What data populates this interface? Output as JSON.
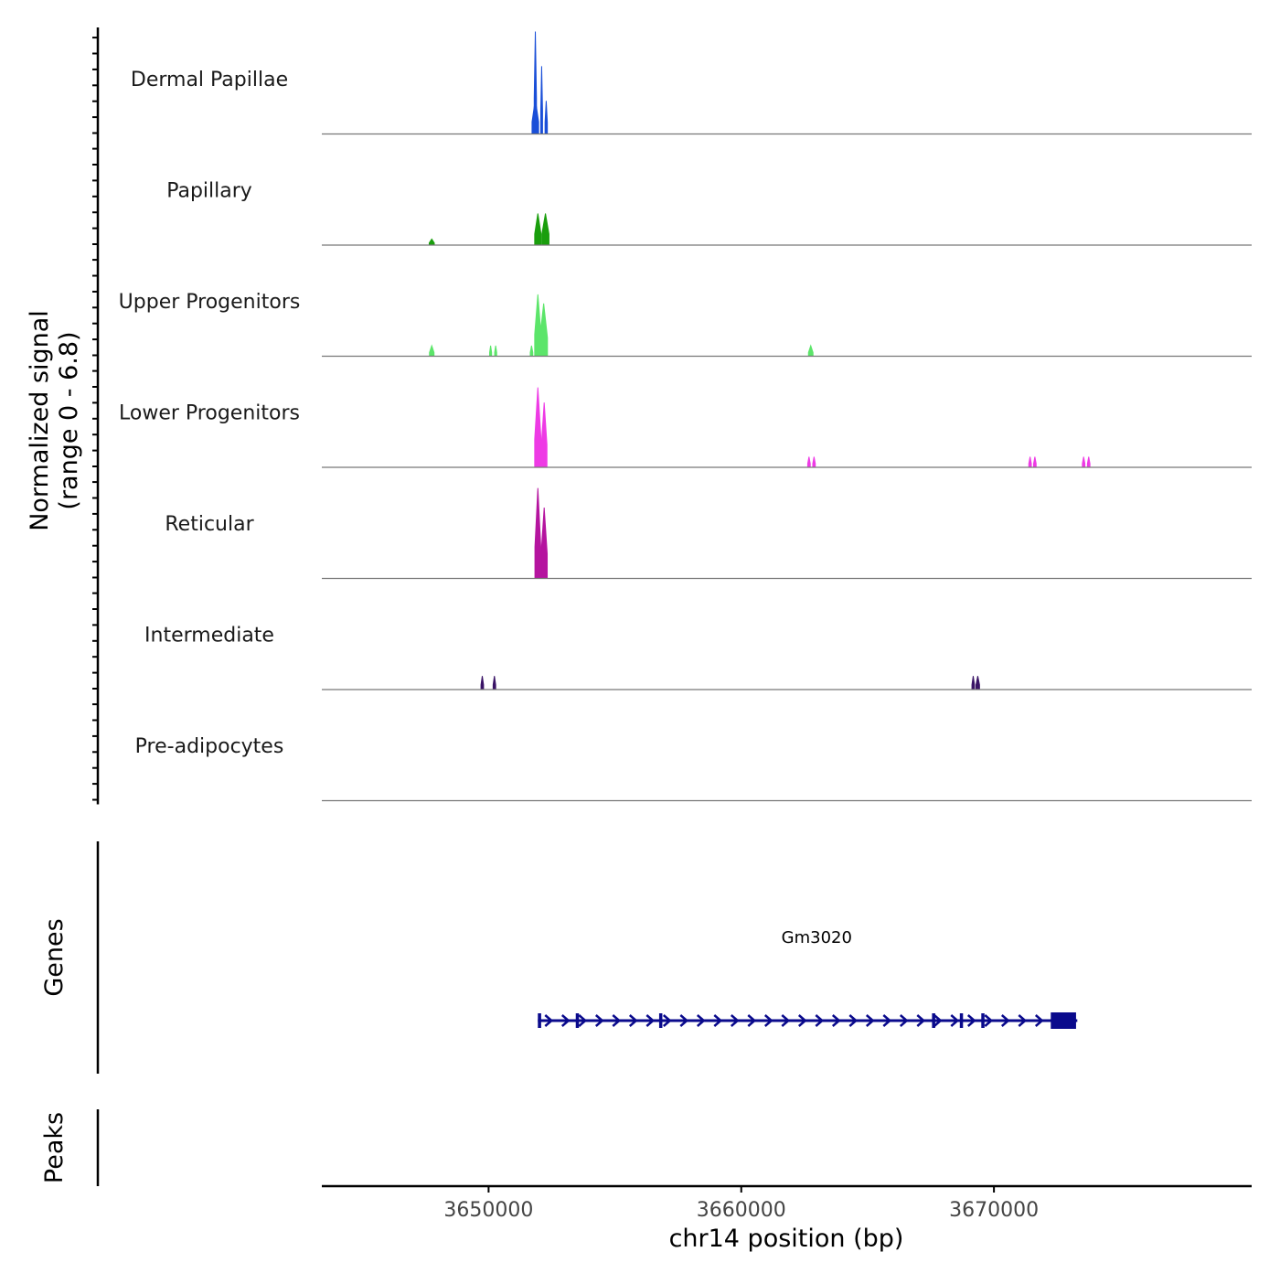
{
  "chart_data": {
    "type": "coverage",
    "chromosome": "chr14",
    "xlim": [
      3643400,
      3680200
    ],
    "xlabel": "chr14 position (bp)",
    "x_ticks": [
      {
        "value": 3650000,
        "label": "3650000"
      },
      {
        "value": 3660000,
        "label": "3660000"
      },
      {
        "value": 3670000,
        "label": "3670000"
      }
    ],
    "signal_panel": {
      "ylabel": "Normalized signal",
      "ylabel2": "(range 0 - 6.8)",
      "ylim": [
        0,
        6.8
      ],
      "tracks": [
        {
          "name": "Dermal Papillae",
          "color": "#1a4fd8",
          "peaks": [
            {
              "center": 3651850,
              "width": 90,
              "height": 6.8
            },
            {
              "center": 3651850,
              "width": 260,
              "height": 2.3
            },
            {
              "center": 3652100,
              "width": 70,
              "height": 4.5
            },
            {
              "center": 3652280,
              "width": 90,
              "height": 2.2
            }
          ]
        },
        {
          "name": "Papillary",
          "color": "#1a9e0d",
          "peaks": [
            {
              "center": 3647750,
              "width": 200,
              "height": 0.4
            },
            {
              "center": 3651950,
              "width": 250,
              "height": 2.1
            },
            {
              "center": 3652250,
              "width": 280,
              "height": 2.1
            }
          ]
        },
        {
          "name": "Upper Progenitors",
          "color": "#5ce56a",
          "peaks": [
            {
              "center": 3647750,
              "width": 180,
              "height": 0.7
            },
            {
              "center": 3650080,
              "width": 80,
              "height": 0.7
            },
            {
              "center": 3650280,
              "width": 80,
              "height": 0.7
            },
            {
              "center": 3651700,
              "width": 100,
              "height": 0.7
            },
            {
              "center": 3651950,
              "width": 250,
              "height": 4.1
            },
            {
              "center": 3652180,
              "width": 300,
              "height": 3.5
            },
            {
              "center": 3662750,
              "width": 180,
              "height": 0.7
            }
          ]
        },
        {
          "name": "Lower Progenitors",
          "color": "#ee3ae5",
          "peaks": [
            {
              "center": 3651950,
              "width": 250,
              "height": 5.3
            },
            {
              "center": 3652200,
              "width": 220,
              "height": 4.3
            },
            {
              "center": 3662680,
              "width": 100,
              "height": 0.7
            },
            {
              "center": 3662880,
              "width": 100,
              "height": 0.7
            },
            {
              "center": 3671430,
              "width": 100,
              "height": 0.7
            },
            {
              "center": 3671620,
              "width": 100,
              "height": 0.7
            },
            {
              "center": 3673550,
              "width": 100,
              "height": 0.7
            },
            {
              "center": 3673750,
              "width": 100,
              "height": 0.7
            }
          ]
        },
        {
          "name": "Reticular",
          "color": "#b5149f",
          "peaks": [
            {
              "center": 3651950,
              "width": 230,
              "height": 6.0
            },
            {
              "center": 3652200,
              "width": 240,
              "height": 4.7
            }
          ]
        },
        {
          "name": "Intermediate",
          "color": "#3a1466",
          "peaks": [
            {
              "center": 3649750,
              "width": 100,
              "height": 0.9
            },
            {
              "center": 3650230,
              "width": 100,
              "height": 0.9
            },
            {
              "center": 3669180,
              "width": 100,
              "height": 0.9
            },
            {
              "center": 3669360,
              "width": 140,
              "height": 0.9
            }
          ]
        },
        {
          "name": "Pre-adipocytes",
          "color": "#888888",
          "peaks": []
        }
      ]
    },
    "genes_panel": {
      "ylabel": "Genes",
      "genes": [
        {
          "name": "Gm3020",
          "start": 3651950,
          "end": 3673300,
          "strand": "+",
          "exons": [
            [
              3651950,
              3652080
            ],
            [
              3653450,
              3653530
            ],
            [
              3656750,
              3656830
            ],
            [
              3667550,
              3667630
            ],
            [
              3668650,
              3668730
            ],
            [
              3669500,
              3669600
            ],
            [
              3672250,
              3673250
            ]
          ],
          "color": "#0a0a8c"
        }
      ]
    },
    "peaks_panel": {
      "ylabel": "Peaks",
      "peaks": []
    }
  }
}
